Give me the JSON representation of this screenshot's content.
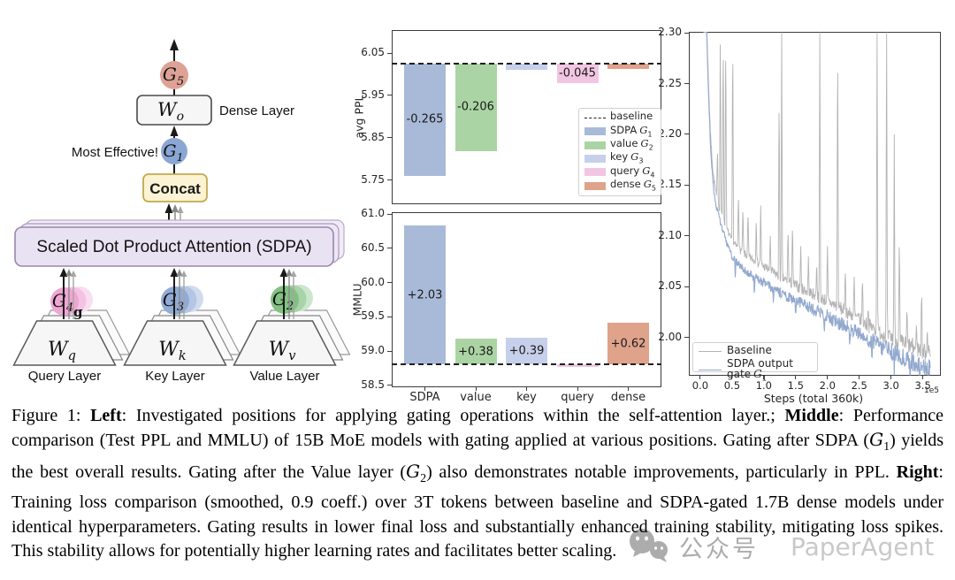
{
  "diagram": {
    "nodes": {
      "g5": {
        "main": "G",
        "sub": "5"
      },
      "g1": {
        "main": "G",
        "sub": "1"
      },
      "g2": {
        "main": "G",
        "sub": "2"
      },
      "g3": {
        "main": "G",
        "sub": "3"
      },
      "g4": {
        "main": "G",
        "sub": "4"
      },
      "wo": {
        "main": "W",
        "sub": "o"
      },
      "wq": {
        "main": "W",
        "sub": "q"
      },
      "wk": {
        "main": "W",
        "sub": "k"
      },
      "wv": {
        "main": "W",
        "sub": "v"
      }
    },
    "labels": {
      "dense_layer": "Dense Layer",
      "most_effective": "Most Effective!",
      "concat": "Concat",
      "sdpa": "Scaled Dot Product Attention (SDPA)",
      "query_layer": "Query Layer",
      "key_layer": "Key Layer",
      "value_layer": "Value Layer",
      "stray_g": "g"
    },
    "colors": {
      "gate_red": "#dda295",
      "gate_blue": "#8aa6d3",
      "gate_green": "#83c083",
      "gate_pink": "#efa6d3",
      "sdpa_fill": "#e9e2f3",
      "sdpa_border": "#9a86ad",
      "concat_fill": "#fbf3d3",
      "concat_border": "#c3a94f",
      "layer_fill": "#f6f6f6"
    }
  },
  "chart_data": [
    {
      "type": "bar",
      "ylabel": "avg PPL",
      "categories": [
        "SDPA",
        "value",
        "key",
        "query",
        "dense"
      ],
      "baseline": 6.025,
      "deltas": [
        -0.265,
        -0.206,
        -0.015,
        -0.045,
        -0.012
      ],
      "values": [
        5.76,
        5.819,
        6.01,
        5.98,
        6.013
      ],
      "bar_labels": [
        "-0.265",
        "-0.206",
        "",
        "-0.045",
        ""
      ],
      "ylim": [
        5.693,
        6.1045
      ],
      "yticks": [
        "6.05",
        "5.95",
        "5.85",
        "5.75"
      ],
      "colors": [
        "#a9bad9",
        "#abd4a4",
        "#c7d0ea",
        "#f2c6e2",
        "#dfa28b"
      ],
      "legend": {
        "items": [
          {
            "label": "baseline",
            "math": "",
            "sub": ""
          },
          {
            "label": "SDPA",
            "math": "G",
            "sub": "1"
          },
          {
            "label": "value",
            "math": "G",
            "sub": "2"
          },
          {
            "label": "key",
            "math": "G",
            "sub": "3"
          },
          {
            "label": "query",
            "math": "G",
            "sub": "4"
          },
          {
            "label": "dense",
            "math": "G",
            "sub": "5"
          }
        ]
      }
    },
    {
      "type": "bar",
      "ylabel": "MMLU",
      "categories": [
        "SDPA",
        "value",
        "key",
        "query",
        "dense"
      ],
      "baseline": 58.8,
      "deltas": [
        2.03,
        0.38,
        0.39,
        -0.03,
        0.62
      ],
      "values": [
        60.83,
        59.18,
        59.19,
        58.77,
        59.42
      ],
      "bar_labels": [
        "+2.03",
        "+0.38",
        "+0.39",
        "",
        "+0.62"
      ],
      "ylim": [
        58.47,
        61.03
      ],
      "yticks": [
        "61.0",
        "60.5",
        "60.0",
        "59.5",
        "59.0",
        "58.5"
      ],
      "colors": [
        "#a9bad9",
        "#abd4a4",
        "#c7d0ea",
        "#f2c6e2",
        "#dfa28b"
      ]
    },
    {
      "type": "line",
      "xlabel": "Steps (total 360k)",
      "x_offset_label": "1e5",
      "xticks": [
        "0.0",
        "0.5",
        "1.0",
        "1.5",
        "2.0",
        "2.5",
        "3.0",
        "3.5"
      ],
      "yticks": [
        "2.30",
        "2.25",
        "2.20",
        "2.15",
        "2.10",
        "2.05",
        "2.00"
      ],
      "xlim": [
        -0.18,
        3.78
      ],
      "ylim": [
        1.9625,
        2.3009
      ],
      "series": [
        {
          "name": "Baseline",
          "math": "",
          "sub": "",
          "color": "#b3b3b3",
          "x": [
            0.05,
            0.1,
            0.13,
            0.16,
            0.2,
            0.25,
            0.3,
            0.4,
            0.5,
            0.7,
            1.0,
            1.3,
            1.6,
            2.0,
            2.4,
            2.8,
            3.2,
            3.5,
            3.62
          ],
          "y": [
            2.5,
            2.31,
            2.25,
            2.2,
            2.163,
            2.14,
            2.128,
            2.11,
            2.094,
            2.082,
            2.07,
            2.058,
            2.048,
            2.036,
            2.022,
            2.006,
            1.994,
            1.987,
            1.984
          ],
          "spikes": [
            [
              0.27,
              2.19
            ],
            [
              0.315,
              2.302
            ],
            [
              0.36,
              2.302
            ],
            [
              0.4,
              2.302
            ],
            [
              0.51,
              2.302
            ],
            [
              0.6,
              2.145
            ],
            [
              0.67,
              2.13
            ],
            [
              0.75,
              2.125
            ],
            [
              0.88,
              2.12
            ],
            [
              0.95,
              2.13
            ],
            [
              1.1,
              2.1
            ],
            [
              1.24,
              2.25
            ],
            [
              1.28,
              2.302
            ],
            [
              1.38,
              2.11
            ],
            [
              1.45,
              2.115
            ],
            [
              1.58,
              2.09
            ],
            [
              1.7,
              2.08
            ],
            [
              1.83,
              2.075
            ],
            [
              1.88,
              2.302
            ],
            [
              2.0,
              2.09
            ],
            [
              2.16,
              2.302
            ],
            [
              2.28,
              2.07
            ],
            [
              2.42,
              2.06
            ],
            [
              2.55,
              2.06
            ],
            [
              2.64,
              2.03
            ],
            [
              2.78,
              2.302
            ],
            [
              2.93,
              2.302
            ],
            [
              3.05,
              2.2
            ],
            [
              3.13,
              2.105
            ],
            [
              3.25,
              2.03
            ],
            [
              3.4,
              2.015
            ],
            [
              3.48,
              2.05
            ],
            [
              3.57,
              2.01
            ]
          ]
        },
        {
          "name": "SDPA output gate",
          "math": "G",
          "sub": "1",
          "color": "#93a9cf",
          "x": [
            0.05,
            0.1,
            0.13,
            0.16,
            0.2,
            0.25,
            0.3,
            0.4,
            0.5,
            0.7,
            1.0,
            1.3,
            1.6,
            2.0,
            2.4,
            2.8,
            3.2,
            3.5,
            3.62
          ],
          "y": [
            2.5,
            2.3,
            2.24,
            2.19,
            2.15,
            2.13,
            2.118,
            2.096,
            2.079,
            2.066,
            2.054,
            2.042,
            2.034,
            2.021,
            2.007,
            1.993,
            1.98,
            1.972,
            1.968
          ],
          "dips": [
            [
              0.55,
              2.055
            ],
            [
              0.85,
              2.04
            ],
            [
              1.15,
              2.03
            ],
            [
              1.5,
              2.02
            ],
            [
              1.95,
              2.0
            ],
            [
              2.35,
              1.99
            ],
            [
              2.7,
              1.975
            ],
            [
              3.05,
              1.962
            ],
            [
              3.3,
              1.956
            ],
            [
              3.45,
              1.95
            ],
            [
              3.58,
              1.948
            ]
          ]
        }
      ]
    }
  ],
  "caption": {
    "segments": [
      {
        "t": "Figure 1: ",
        "s": "plain"
      },
      {
        "t": "Left",
        "s": "bold"
      },
      {
        "t": ": Investigated positions for applying gating operations within the self-attention layer.; ",
        "s": "plain"
      },
      {
        "t": "Middle",
        "s": "bold"
      },
      {
        "t": ": Performance comparison (Test PPL and MMLU) of 15B MoE models with gating applied at various positions. Gating after SDPA (",
        "s": "plain"
      },
      {
        "t": "G",
        "s": "math"
      },
      {
        "t": "1",
        "s": "sub"
      },
      {
        "t": ") yields the best overall results. Gating after the Value layer (",
        "s": "plain"
      },
      {
        "t": "G",
        "s": "math"
      },
      {
        "t": "2",
        "s": "sub"
      },
      {
        "t": ") also demonstrates notable improvements, particularly in PPL. ",
        "s": "plain"
      },
      {
        "t": "Right",
        "s": "bold"
      },
      {
        "t": ": Training loss comparison (smoothed, 0.9 coeff.) over 3T tokens between baseline and SDPA-gated 1.7B dense models under identical hyperparameters. Gating results in lower final loss and substantially enhanced training stability, mitigating loss spikes. This stability allows for potentially higher learning rates and facilitates better scaling.",
        "s": "plain"
      }
    ]
  },
  "watermark": {
    "text_cn": "公众号",
    "text_en": "PaperAgent"
  }
}
